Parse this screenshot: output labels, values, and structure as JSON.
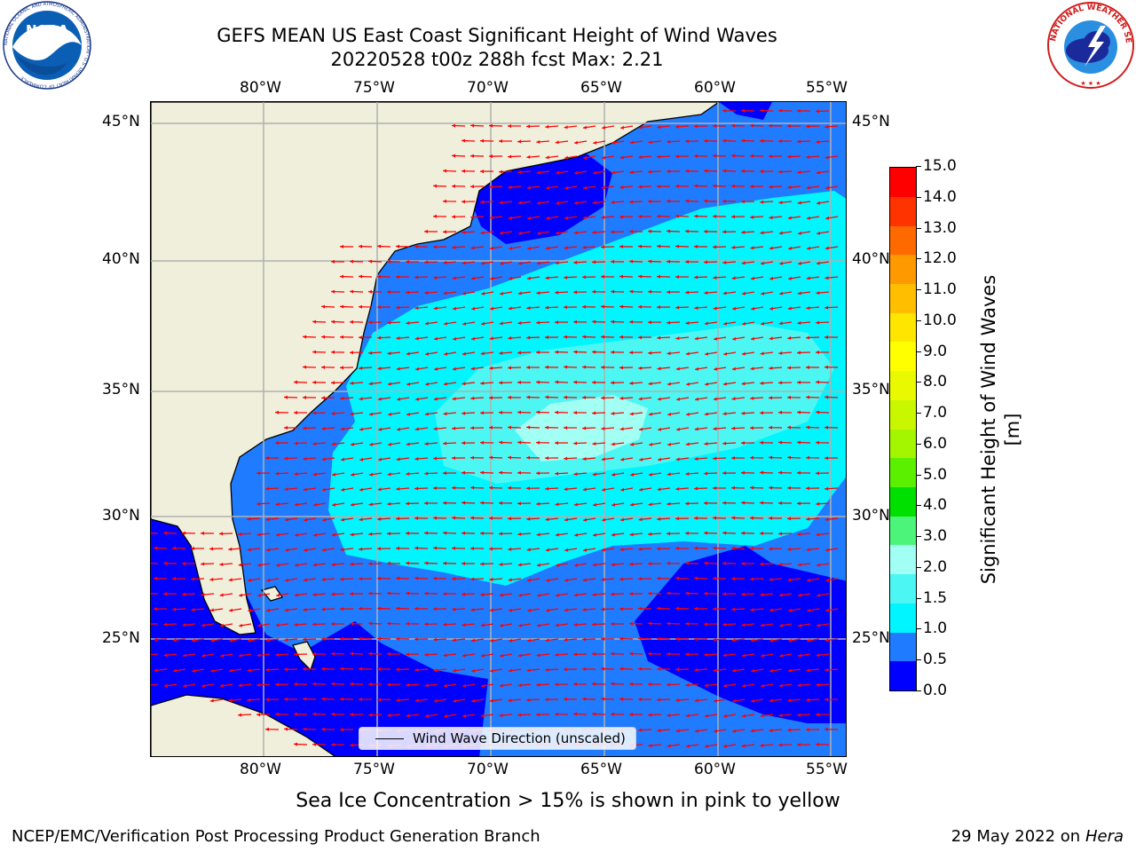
{
  "title": {
    "line1": "GEFS MEAN US East Coast Significant Height of Wind Waves",
    "line2": "20220528 t00z 288h fcst   Max: 2.21"
  },
  "map": {
    "lon_labels": [
      "80°W",
      "75°W",
      "70°W",
      "65°W",
      "60°W",
      "55°W"
    ],
    "lat_labels": [
      "45°N",
      "40°N",
      "35°N",
      "30°N",
      "25°N"
    ],
    "colors": {
      "land": "#efefdc",
      "coast": "#000000",
      "grid": "#b0b0b0",
      "arrow": "#ff0000"
    }
  },
  "colorbar": {
    "label": "Significant Height of Wind Waves [m]",
    "ticks": [
      "15.0",
      "14.0",
      "13.0",
      "12.0",
      "11.0",
      "10.0",
      "9.0",
      "8.0",
      "7.0",
      "6.0",
      "5.0",
      "4.0",
      "3.0",
      "2.0",
      "1.5",
      "1.0",
      "0.5",
      "0.0"
    ],
    "colors": [
      "#0000ff",
      "#1f7bff",
      "#00f5ff",
      "#4cf7f3",
      "#a2fff3",
      "#4cf47a",
      "#00e000",
      "#5bf000",
      "#a3f500",
      "#c9f700",
      "#e9f900",
      "#ffff00",
      "#ffe600",
      "#ffbf00",
      "#ff9900",
      "#ff6a00",
      "#ff3300",
      "#ff0000"
    ]
  },
  "legend": {
    "label": "Wind Wave Direction (unscaled)"
  },
  "subtitle": "Sea Ice Concentration > 15% is shown in pink to yellow",
  "footer": {
    "left": "NCEP/EMC/Verification Post Processing Product Generation Branch",
    "right_date": "29 May 2022 on",
    "right_machine": "Hera"
  },
  "logos": {
    "noaa_text": "NOAA",
    "noaa_ring": "NATIONAL OCEANIC AND ATMOSPHERIC ADMINISTRATION · U.S. DEPARTMENT OF COMMERCE",
    "nws_ring": "NATIONAL WEATHER SERVICE"
  }
}
